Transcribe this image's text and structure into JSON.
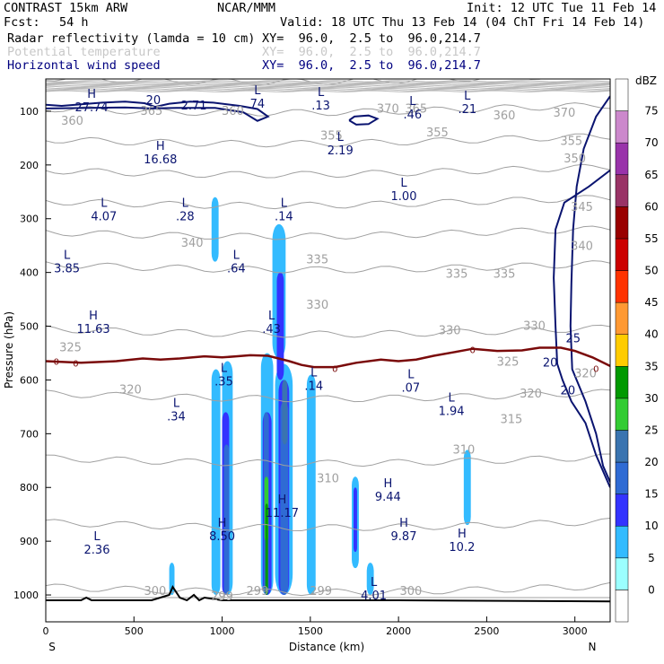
{
  "header": {
    "model": "CONTRAST 15km ARW",
    "org": "NCAR/MMM",
    "init": "Init: 12 UTC Tue 11 Feb 14",
    "fcst_label": "Fcst:",
    "fcst_value": "54 h",
    "valid": "Valid: 18 UTC Thu 13 Feb 14 (04 ChT Fri 14 Feb 14)",
    "field1": "Radar reflectivity (lamda = 10 cm)",
    "field1_xy": "XY=  96.0,  2.5 to  96.0,214.7",
    "field2": "Potential temperature",
    "field2_xy": "XY=  96.0,  2.5 to  96.0,214.7",
    "field3": "Horizontal wind speed",
    "field3_xy": "XY=  96.0,  2.5 to  96.0,214.7"
  },
  "colors": {
    "field1": "#000000",
    "field2": "#c8c8c8",
    "field3": "#000080",
    "theta": "#a0a0a0",
    "wind": "#0a1470",
    "freezing": "#7a0a0a",
    "terrain": "#000000"
  },
  "chart_data": {
    "type": "cross-section",
    "xlabel": "Distance (km)",
    "ylabel": "Pressure (hPa)",
    "xlim": [
      0,
      3200
    ],
    "ylim": [
      1050,
      40
    ],
    "xticks": [
      0,
      500,
      1000,
      1500,
      2000,
      2500,
      3000
    ],
    "yticks": [
      100,
      200,
      300,
      400,
      500,
      600,
      700,
      800,
      900,
      1000
    ],
    "x_end_labels": {
      "left": "S",
      "right": "N"
    },
    "colorbar": {
      "unit": "dBZ",
      "levels": [
        0,
        5,
        10,
        15,
        20,
        25,
        30,
        35,
        40,
        45,
        50,
        55,
        60,
        65,
        70,
        75
      ],
      "colors": [
        "#ffffff",
        "#9bffff",
        "#33bbff",
        "#3333ff",
        "#2f6bd4",
        "#3a74b0",
        "#33cc33",
        "#009900",
        "#ffcc00",
        "#ff9933",
        "#ff3300",
        "#cc0000",
        "#990000",
        "#993366",
        "#9933aa",
        "#cc88cc",
        "#ffffff"
      ]
    },
    "theta_labels": [
      {
        "x": 150,
        "p": 125,
        "v": "360"
      },
      {
        "x": 600,
        "p": 107,
        "v": "365"
      },
      {
        "x": 1060,
        "p": 107,
        "v": "360"
      },
      {
        "x": 1620,
        "p": 153,
        "v": "355"
      },
      {
        "x": 1940,
        "p": 103,
        "v": "370"
      },
      {
        "x": 2100,
        "p": 103,
        "v": "365"
      },
      {
        "x": 2220,
        "p": 147,
        "v": "355"
      },
      {
        "x": 2600,
        "p": 115,
        "v": "360"
      },
      {
        "x": 2940,
        "p": 110,
        "v": "370"
      },
      {
        "x": 2980,
        "p": 163,
        "v": "355"
      },
      {
        "x": 3000,
        "p": 195,
        "v": "350"
      },
      {
        "x": 3040,
        "p": 285,
        "v": "345"
      },
      {
        "x": 3040,
        "p": 358,
        "v": "340"
      },
      {
        "x": 830,
        "p": 352,
        "v": "340"
      },
      {
        "x": 1540,
        "p": 383,
        "v": "335"
      },
      {
        "x": 2330,
        "p": 410,
        "v": "335"
      },
      {
        "x": 2600,
        "p": 410,
        "v": "335"
      },
      {
        "x": 1540,
        "p": 467,
        "v": "330"
      },
      {
        "x": 2290,
        "p": 515,
        "v": "330"
      },
      {
        "x": 2770,
        "p": 507,
        "v": "330"
      },
      {
        "x": 140,
        "p": 547,
        "v": "325"
      },
      {
        "x": 2620,
        "p": 573,
        "v": "325"
      },
      {
        "x": 480,
        "p": 625,
        "v": "320"
      },
      {
        "x": 2750,
        "p": 633,
        "v": "320"
      },
      {
        "x": 3060,
        "p": 595,
        "v": "320"
      },
      {
        "x": 2640,
        "p": 680,
        "v": "315"
      },
      {
        "x": 2370,
        "p": 737,
        "v": "310"
      },
      {
        "x": 1600,
        "p": 790,
        "v": "310"
      },
      {
        "x": 620,
        "p": 1000,
        "v": "300"
      },
      {
        "x": 1000,
        "p": 1010,
        "v": "299"
      },
      {
        "x": 1200,
        "p": 1000,
        "v": "299"
      },
      {
        "x": 1560,
        "p": 1000,
        "v": "299"
      },
      {
        "x": 2070,
        "p": 1000,
        "v": "300"
      }
    ],
    "wind_labels": [
      {
        "x": 2990,
        "p": 530,
        "v": "25"
      },
      {
        "x": 2860,
        "p": 575,
        "v": "20"
      },
      {
        "x": 2960,
        "p": 627,
        "v": "20"
      },
      {
        "x": 610,
        "p": 87,
        "v": "20"
      }
    ],
    "freezing_labels": [
      {
        "x": 60,
        "p": 565,
        "v": "0"
      },
      {
        "x": 170,
        "p": 568,
        "v": "0"
      },
      {
        "x": 1640,
        "p": 578,
        "v": "0"
      },
      {
        "x": 2420,
        "p": 543,
        "v": "0"
      },
      {
        "x": 3120,
        "p": 578,
        "v": "0"
      }
    ],
    "extrema": [
      {
        "x": 260,
        "p": 75,
        "t": "H",
        "v": "27.74"
      },
      {
        "x": 840,
        "p": 72,
        "t": "",
        "v": "2.71"
      },
      {
        "x": 1200,
        "p": 68,
        "t": "L",
        "v": "74"
      },
      {
        "x": 1560,
        "p": 72,
        "t": "L",
        "v": ".13"
      },
      {
        "x": 2080,
        "p": 88,
        "t": "L",
        "v": ".46"
      },
      {
        "x": 2390,
        "p": 78,
        "t": "L",
        "v": ".21"
      },
      {
        "x": 650,
        "p": 172,
        "t": "H",
        "v": "16.68"
      },
      {
        "x": 1670,
        "p": 155,
        "t": "L",
        "v": "2.19"
      },
      {
        "x": 2030,
        "p": 240,
        "t": "L",
        "v": "1.00"
      },
      {
        "x": 330,
        "p": 278,
        "t": "L",
        "v": "4.07"
      },
      {
        "x": 790,
        "p": 278,
        "t": "L",
        "v": ".28"
      },
      {
        "x": 1350,
        "p": 278,
        "t": "L",
        "v": ".14"
      },
      {
        "x": 120,
        "p": 375,
        "t": "L",
        "v": "3.85"
      },
      {
        "x": 1080,
        "p": 375,
        "t": "L",
        "v": ".64"
      },
      {
        "x": 270,
        "p": 487,
        "t": "H",
        "v": "11.63"
      },
      {
        "x": 1280,
        "p": 487,
        "t": "L",
        "v": ".43"
      },
      {
        "x": 1520,
        "p": 593,
        "t": "L",
        "v": ".14"
      },
      {
        "x": 1010,
        "p": 585,
        "t": "L",
        "v": ".35"
      },
      {
        "x": 2070,
        "p": 597,
        "t": "L",
        "v": ".07"
      },
      {
        "x": 2300,
        "p": 640,
        "t": "L",
        "v": "1.94"
      },
      {
        "x": 740,
        "p": 650,
        "t": "L",
        "v": ".34"
      },
      {
        "x": 1940,
        "p": 800,
        "t": "H",
        "v": "9.44"
      },
      {
        "x": 1340,
        "p": 830,
        "t": "H",
        "v": "11.17"
      },
      {
        "x": 1000,
        "p": 873,
        "t": "H",
        "v": "8.50"
      },
      {
        "x": 2030,
        "p": 873,
        "t": "H",
        "v": "9.87"
      },
      {
        "x": 2360,
        "p": 893,
        "t": "H",
        "v": "10.2"
      },
      {
        "x": 290,
        "p": 898,
        "t": "L",
        "v": "2.36"
      },
      {
        "x": 1860,
        "p": 983,
        "t": "L",
        "v": "4.01"
      }
    ],
    "reflectivity_cells": [
      {
        "x0": 940,
        "x1": 980,
        "p0": 260,
        "p1": 380,
        "level": 5
      },
      {
        "x0": 1285,
        "x1": 1360,
        "p0": 310,
        "p1": 560,
        "level": 5
      },
      {
        "x0": 1000,
        "x1": 1060,
        "p0": 565,
        "p1": 1000,
        "level": 5
      },
      {
        "x0": 940,
        "x1": 990,
        "p0": 580,
        "p1": 1000,
        "level": 5
      },
      {
        "x0": 1220,
        "x1": 1290,
        "p0": 550,
        "p1": 1000,
        "level": 5
      },
      {
        "x0": 1300,
        "x1": 1400,
        "p0": 570,
        "p1": 1000,
        "level": 5
      },
      {
        "x0": 1480,
        "x1": 1530,
        "p0": 590,
        "p1": 1000,
        "level": 5
      },
      {
        "x0": 1735,
        "x1": 1775,
        "p0": 780,
        "p1": 950,
        "level": 5
      },
      {
        "x0": 1820,
        "x1": 1860,
        "p0": 940,
        "p1": 1000,
        "level": 5
      },
      {
        "x0": 2370,
        "x1": 2410,
        "p0": 730,
        "p1": 870,
        "level": 5
      },
      {
        "x0": 700,
        "x1": 730,
        "p0": 940,
        "p1": 1000,
        "level": 5
      },
      {
        "x0": 1310,
        "x1": 1350,
        "p0": 400,
        "p1": 600,
        "level": 10
      },
      {
        "x0": 1000,
        "x1": 1040,
        "p0": 660,
        "p1": 1000,
        "level": 10
      },
      {
        "x0": 1230,
        "x1": 1280,
        "p0": 660,
        "p1": 1000,
        "level": 10
      },
      {
        "x0": 1320,
        "x1": 1380,
        "p0": 600,
        "p1": 1000,
        "level": 10
      },
      {
        "x0": 1745,
        "x1": 1765,
        "p0": 800,
        "p1": 920,
        "level": 10
      },
      {
        "x0": 1010,
        "x1": 1040,
        "p0": 720,
        "p1": 1000,
        "level": 15
      },
      {
        "x0": 1330,
        "x1": 1375,
        "p0": 640,
        "p1": 1000,
        "level": 15
      },
      {
        "x0": 1235,
        "x1": 1265,
        "p0": 660,
        "p1": 1000,
        "level": 15
      },
      {
        "x0": 1340,
        "x1": 1370,
        "p0": 600,
        "p1": 720,
        "level": 20
      },
      {
        "x0": 1240,
        "x1": 1262,
        "p0": 780,
        "p1": 900,
        "level": 25
      },
      {
        "x0": 1245,
        "x1": 1260,
        "p0": 830,
        "p1": 1000,
        "level": 30
      }
    ],
    "freezing_level_p": [
      [
        0,
        565
      ],
      [
        200,
        568
      ],
      [
        400,
        565
      ],
      [
        550,
        560
      ],
      [
        650,
        562
      ],
      [
        760,
        560
      ],
      [
        900,
        556
      ],
      [
        1000,
        558
      ],
      [
        1080,
        556
      ],
      [
        1160,
        554
      ],
      [
        1260,
        555
      ],
      [
        1380,
        565
      ],
      [
        1450,
        572
      ],
      [
        1520,
        576
      ],
      [
        1640,
        576
      ],
      [
        1760,
        568
      ],
      [
        1900,
        562
      ],
      [
        2000,
        565
      ],
      [
        2100,
        562
      ],
      [
        2200,
        555
      ],
      [
        2320,
        548
      ],
      [
        2420,
        542
      ],
      [
        2560,
        546
      ],
      [
        2700,
        545
      ],
      [
        2800,
        540
      ],
      [
        2920,
        540
      ],
      [
        3000,
        546
      ],
      [
        3100,
        558
      ],
      [
        3200,
        574
      ]
    ],
    "terrain_p": [
      [
        0,
        1010
      ],
      [
        200,
        1010
      ],
      [
        230,
        1005
      ],
      [
        260,
        1010
      ],
      [
        600,
        1010
      ],
      [
        700,
        1000
      ],
      [
        720,
        985
      ],
      [
        760,
        1005
      ],
      [
        800,
        1010
      ],
      [
        840,
        1000
      ],
      [
        870,
        1010
      ],
      [
        900,
        1005
      ],
      [
        1000,
        1010
      ],
      [
        2000,
        1010
      ],
      [
        3200,
        1012
      ]
    ]
  }
}
